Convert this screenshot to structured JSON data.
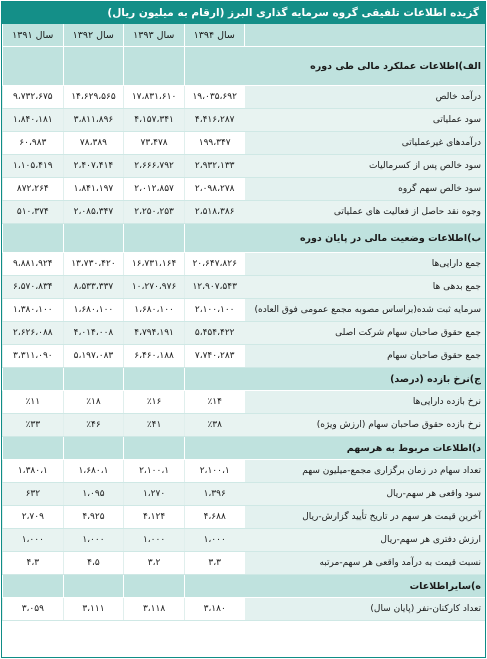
{
  "title": "گزیده اطلاعات تلفیقی گروه سرمایه گذاری البرز (ارقام به میلیون ریال)",
  "columns": [
    "سال ۱۳۹۴",
    "سال ۱۳۹۳",
    "سال ۱۳۹۲",
    "سال ۱۳۹۱"
  ],
  "sections": [
    {
      "title": "الف)اطلاعات عملکرد مالی طی دوره",
      "rows": [
        {
          "label": "درآمد خالص",
          "values": [
            "۱۹،۰۳۵،۶۹۲",
            "۱۷،۸۳۱،۶۱۰",
            "۱۴،۶۲۹،۵۶۵",
            "۹،۷۳۲،۶۷۵"
          ]
        },
        {
          "label": "سود عملیاتی",
          "values": [
            "۴،۴۱۶،۲۸۷",
            "۴،۱۵۷،۳۴۱",
            "۳،۸۱۱،۸۹۶",
            "۱،۸۴۰،۱۸۱"
          ]
        },
        {
          "label": "درآمدهای غیرعملیاتی",
          "values": [
            "۱۹۹،۳۴۷",
            "۷۳،۴۷۸",
            "۷۸،۳۸۹",
            "۶۰،۹۸۳"
          ]
        },
        {
          "label": "سود خالص پس از کسرمالیات",
          "values": [
            "۲،۹۳۲،۱۳۳",
            "۲،۶۶۶،۷۹۲",
            "۲،۴۰۷،۴۱۴",
            "۱،۱۰۵،۴۱۹"
          ]
        },
        {
          "label": "سود خالص سهم گروه",
          "values": [
            "۲،۰۹۸،۲۷۸",
            "۲،۰۱۲،۸۵۷",
            "۱،۸۴۱،۱۹۷",
            "۸۷۲،۲۶۴"
          ]
        },
        {
          "label": "وجوه نقد حاصل از فعالیت های عملیاتی",
          "values": [
            "۲،۵۱۸،۳۸۶",
            "۲،۲۵۰،۲۵۳",
            "۲،۰۸۵،۳۴۷",
            "۵۱۰،۳۷۴"
          ]
        }
      ]
    },
    {
      "title": "ب)اطلاعات وضعیت مالی در پایان دوره",
      "rows": [
        {
          "label": "جمع دارایی‌ها",
          "values": [
            "۲۰،۶۴۷،۸۲۶",
            "۱۶،۷۳۱،۱۶۴",
            "۱۳،۷۳۰،۴۲۰",
            "۹،۸۸۱،۹۲۴"
          ]
        },
        {
          "label": "جمع بدهی ها",
          "values": [
            "۱۲،۹۰۷،۵۴۳",
            "۱۰،۲۷۰،۹۷۶",
            "۸،۵۳۳،۳۳۷",
            "۶،۵۷۰،۸۳۴"
          ]
        },
        {
          "label": "سرمایه ثبت شده(براساس مصوبه مجمع عمومی فوق العاده)",
          "values": [
            "۲،۱۰۰،۱۰۰",
            "۱،۶۸۰،۱۰۰",
            "۱،۶۸۰،۱۰۰",
            "۱،۳۸۰،۱۰۰"
          ]
        },
        {
          "label": "جمع حقوق صاحبان سهام شرکت اصلی",
          "values": [
            "۵،۴۵۴،۴۲۲",
            "۴،۷۹۴،۱۹۱",
            "۴،۰۱۴،۰۰۸",
            "۲،۶۲۶،۰۸۸"
          ]
        },
        {
          "label": "جمع حقوق صاحبان سهام",
          "values": [
            "۷،۷۴۰،۲۸۳",
            "۶،۴۶۰،۱۸۸",
            "۵،۱۹۷،۰۸۳",
            "۳،۳۱۱،۰۹۰"
          ]
        }
      ]
    },
    {
      "title": "ج)نرخ بازده (درصد)",
      "rows": [
        {
          "label": "نرخ بازده دارایی‌ها",
          "values": [
            "٪۱۴",
            "٪۱۶",
            "٪۱۸",
            "٪۱۱"
          ]
        },
        {
          "label": "نرخ بازده حقوق صاحبان سهام (ارزش ویژه)",
          "values": [
            "٪۳۸",
            "٪۴۱",
            "٪۴۶",
            "٪۳۳"
          ]
        }
      ]
    },
    {
      "title": "د)اطلاعات مربوط به هرسهم",
      "rows": [
        {
          "label": "تعداد سهام در زمان برگزاری مجمع-میلیون سهم",
          "values": [
            "۲،۱۰۰،۱",
            "۲،۱۰۰،۱",
            "۱،۶۸۰،۱",
            "۱،۳۸۰،۱"
          ]
        },
        {
          "label": "سود واقعی هر سهم-ریال",
          "values": [
            "۱،۳۹۶",
            "۱،۲۷۰",
            "۱،۰۹۵",
            "۶۳۲"
          ]
        },
        {
          "label": "آخرین قیمت هر سهم در تاریخ تأیید گزارش-ریال",
          "values": [
            "۴،۶۸۸",
            "۴،۱۲۴",
            "۴،۹۲۵",
            "۲،۷۰۹"
          ]
        },
        {
          "label": "ارزش دفتری هر سهم-ریال",
          "values": [
            "۱،۰۰۰",
            "۱،۰۰۰",
            "۱،۰۰۰",
            "۱،۰۰۰"
          ]
        },
        {
          "label": "نسبت قیمت به درآمد واقعی هر سهم-مرتبه",
          "values": [
            "۳،۳",
            "۳،۲",
            "۴،۵",
            "۴،۳"
          ]
        }
      ]
    },
    {
      "title": "ه)سایراطلاعات",
      "rows": [
        {
          "label": "تعداد کارکنان-نفر (پایان سال)",
          "values": [
            "۳،۱۸۰",
            "۳،۱۱۸",
            "۳،۱۱۱",
            "۳،۰۵۹"
          ]
        }
      ]
    }
  ]
}
